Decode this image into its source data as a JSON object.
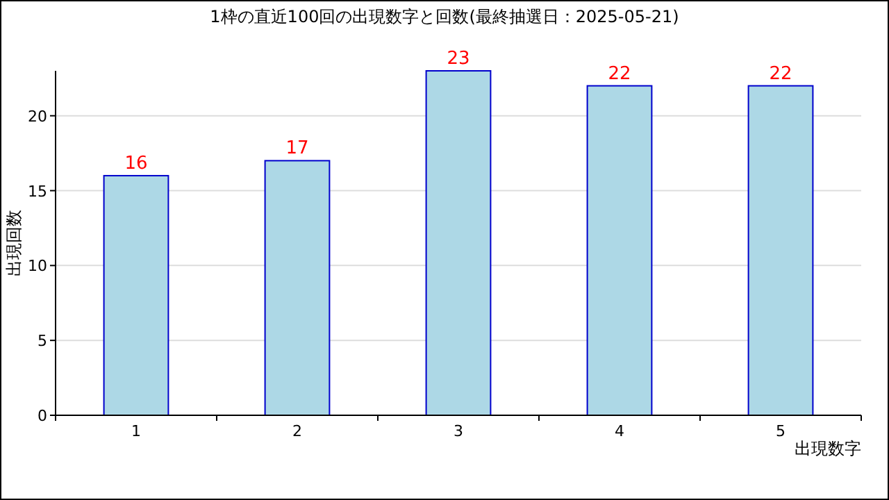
{
  "chart_data": {
    "type": "bar",
    "title": "1枠の直近100回の出現数字と回数(最終抽選日：2025-05-21)",
    "xlabel": "出現数字",
    "ylabel": "出現回数",
    "categories": [
      "1",
      "2",
      "3",
      "4",
      "5"
    ],
    "series": [
      {
        "color": "#add8e6",
        "values": [
          16,
          17,
          23,
          22,
          22
        ]
      }
    ],
    "ylim": [
      0,
      23
    ],
    "yticks": [
      0,
      5,
      10,
      15,
      20
    ],
    "grid": "y",
    "data_labels": true
  }
}
